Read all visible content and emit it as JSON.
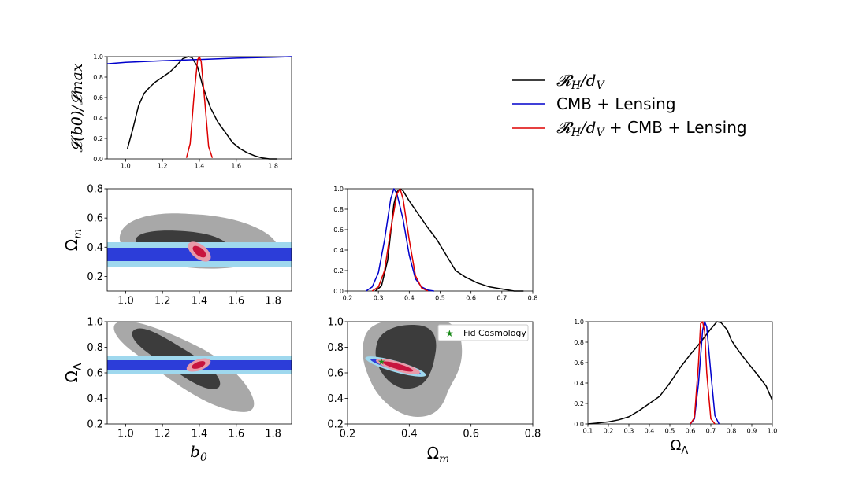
{
  "colors": {
    "black": "#000000",
    "blue": "#0000cc",
    "red": "#dd0000",
    "gray_outer": "#a8a8a8",
    "gray_inner": "#3c3c3c",
    "cyan": "#9fd8ee",
    "navy": "#2c3dd9",
    "pink": "#e89aa8",
    "crimson": "#c8143e",
    "star": "#1a8a1a"
  },
  "legend": {
    "entries": [
      {
        "label": "𝓡H/dV",
        "color": "#000000"
      },
      {
        "label": "CMB + Lensing",
        "color": "#0000cc"
      },
      {
        "label": "𝓡H/dV + CMB + Lensing",
        "color": "#dd0000"
      }
    ],
    "rh_main": "𝓡",
    "rh_sub": "H",
    "dv_main": "/d",
    "dv_sub": "V",
    "cmb": "CMB + Lensing",
    "combo_tail": " + CMB + Lensing"
  },
  "labels": {
    "b0": "b",
    "b0_sub": "0",
    "om": "Ω",
    "om_sub": "m",
    "ol": "Ω",
    "ol_sub": "Λ",
    "like_y": "𝓛(b0)/𝓛max",
    "fid": "Fid Cosmology"
  },
  "chart_data": [
    {
      "type": "line",
      "panel": "b0_marginal",
      "title": "",
      "xlabel": "",
      "ylabel": "𝓛(b0)/𝓛max",
      "xlim": [
        0.9,
        1.9
      ],
      "ylim": [
        0,
        1
      ],
      "xticks": [
        "1.0",
        "1.2",
        "1.4",
        "1.6",
        "1.8"
      ],
      "yticks": [
        "0.0",
        "0.2",
        "0.4",
        "0.6",
        "0.8",
        "1.0"
      ],
      "series": [
        {
          "name": "𝓡H/dV",
          "color": "#000000",
          "x": [
            1.01,
            1.04,
            1.07,
            1.1,
            1.13,
            1.16,
            1.2,
            1.24,
            1.28,
            1.31,
            1.34,
            1.36,
            1.39,
            1.42,
            1.46,
            1.5,
            1.54,
            1.58,
            1.62,
            1.66,
            1.7,
            1.74,
            1.78,
            1.82
          ],
          "y": [
            0.1,
            0.3,
            0.52,
            0.64,
            0.7,
            0.75,
            0.8,
            0.85,
            0.92,
            0.98,
            1.0,
            0.99,
            0.9,
            0.7,
            0.5,
            0.36,
            0.26,
            0.16,
            0.1,
            0.06,
            0.03,
            0.01,
            0.0,
            0.0
          ]
        },
        {
          "name": "CMB + Lensing",
          "color": "#0000cc",
          "x": [
            0.9,
            1.0,
            1.2,
            1.4,
            1.6,
            1.8,
            1.9
          ],
          "y": [
            0.93,
            0.945,
            0.96,
            0.972,
            0.985,
            0.995,
            1.0
          ]
        },
        {
          "name": "𝓡H/dV + CMB + Lensing",
          "color": "#dd0000",
          "x": [
            1.33,
            1.35,
            1.37,
            1.39,
            1.4,
            1.41,
            1.43,
            1.45,
            1.47
          ],
          "y": [
            0.01,
            0.15,
            0.6,
            0.97,
            1.0,
            0.95,
            0.55,
            0.12,
            0.01
          ]
        }
      ]
    },
    {
      "type": "line",
      "panel": "om_marginal",
      "xlim": [
        0.2,
        0.8
      ],
      "ylim": [
        0,
        1
      ],
      "xticks": [
        "0.2",
        "0.3",
        "0.4",
        "0.5",
        "0.6",
        "0.7",
        "0.8"
      ],
      "yticks": [
        "0.0",
        "0.2",
        "0.4",
        "0.6",
        "0.8",
        "1.0"
      ],
      "series": [
        {
          "name": "𝓡H/dV",
          "color": "#000000",
          "x": [
            0.29,
            0.31,
            0.33,
            0.35,
            0.36,
            0.37,
            0.38,
            0.4,
            0.43,
            0.46,
            0.49,
            0.52,
            0.55,
            0.58,
            0.62,
            0.66,
            0.7,
            0.74,
            0.77
          ],
          "y": [
            0.0,
            0.05,
            0.3,
            0.85,
            0.97,
            1.0,
            0.98,
            0.88,
            0.75,
            0.62,
            0.5,
            0.35,
            0.2,
            0.14,
            0.08,
            0.04,
            0.02,
            0.0,
            0.0
          ]
        },
        {
          "name": "CMB + Lensing",
          "color": "#0000cc",
          "x": [
            0.26,
            0.28,
            0.3,
            0.32,
            0.34,
            0.35,
            0.36,
            0.38,
            0.4,
            0.42,
            0.44,
            0.46,
            0.48
          ],
          "y": [
            0.0,
            0.04,
            0.18,
            0.5,
            0.9,
            1.0,
            0.95,
            0.7,
            0.35,
            0.12,
            0.04,
            0.01,
            0.0
          ]
        },
        {
          "name": "𝓡H/dV + CMB + Lensing",
          "color": "#dd0000",
          "x": [
            0.28,
            0.3,
            0.32,
            0.34,
            0.36,
            0.37,
            0.38,
            0.4,
            0.42,
            0.44,
            0.46
          ],
          "y": [
            0.0,
            0.04,
            0.2,
            0.6,
            0.95,
            1.0,
            0.9,
            0.5,
            0.15,
            0.03,
            0.0
          ]
        }
      ]
    },
    {
      "type": "line",
      "panel": "ol_marginal",
      "xlim": [
        0.1,
        1.0
      ],
      "ylim": [
        0,
        1
      ],
      "xticks": [
        "0.1",
        "0.2",
        "0.3",
        "0.4",
        "0.5",
        "0.6",
        "0.7",
        "0.8",
        "0.9",
        "1.0"
      ],
      "yticks": [
        "0.0",
        "0.2",
        "0.4",
        "0.6",
        "0.8",
        "1.0"
      ],
      "series": [
        {
          "name": "𝓡H/dV",
          "color": "#000000",
          "x": [
            0.1,
            0.15,
            0.2,
            0.25,
            0.3,
            0.35,
            0.4,
            0.45,
            0.5,
            0.55,
            0.6,
            0.65,
            0.7,
            0.73,
            0.75,
            0.78,
            0.8,
            0.83,
            0.86,
            0.9,
            0.94,
            0.97,
            1.0
          ],
          "y": [
            0.0,
            0.01,
            0.02,
            0.04,
            0.07,
            0.13,
            0.2,
            0.27,
            0.4,
            0.55,
            0.68,
            0.8,
            0.93,
            1.0,
            0.99,
            0.92,
            0.82,
            0.73,
            0.65,
            0.55,
            0.45,
            0.37,
            0.23
          ]
        },
        {
          "name": "CMB + Lensing",
          "color": "#0000cc",
          "x": [
            0.6,
            0.62,
            0.64,
            0.66,
            0.67,
            0.68,
            0.7,
            0.72,
            0.74
          ],
          "y": [
            0.0,
            0.05,
            0.4,
            0.92,
            1.0,
            0.95,
            0.5,
            0.08,
            0.0
          ]
        },
        {
          "name": "𝓡H/dV + CMB + Lensing",
          "color": "#dd0000",
          "x": [
            0.6,
            0.62,
            0.64,
            0.65,
            0.66,
            0.67,
            0.68,
            0.7,
            0.72
          ],
          "y": [
            0.0,
            0.06,
            0.6,
            0.98,
            1.0,
            0.9,
            0.5,
            0.05,
            0.0
          ]
        }
      ]
    },
    {
      "type": "contour",
      "panel": "b0_om",
      "xlim": [
        0.9,
        1.9
      ],
      "ylim": [
        0.1,
        0.8
      ],
      "xticks": [
        "1.0",
        "1.2",
        "1.4",
        "1.6",
        "1.8"
      ],
      "yticks": [
        "0.2",
        "0.4",
        "0.6",
        "0.8"
      ],
      "xlabel": "",
      "ylabel": "Ωm"
    },
    {
      "type": "contour",
      "panel": "b0_ol",
      "xlim": [
        0.9,
        1.9
      ],
      "ylim": [
        0.2,
        1.0
      ],
      "xticks": [
        "1.0",
        "1.2",
        "1.4",
        "1.6",
        "1.8"
      ],
      "yticks": [
        "0.2",
        "0.4",
        "0.6",
        "0.8",
        "1.0"
      ],
      "xlabel": "b0",
      "ylabel": "ΩΛ"
    },
    {
      "type": "contour",
      "panel": "om_ol",
      "xlim": [
        0.2,
        0.8
      ],
      "ylim": [
        0.2,
        1.0
      ],
      "xticks": [
        "0.2",
        "0.4",
        "0.6",
        "0.8"
      ],
      "yticks": [
        "0.2",
        "0.4",
        "0.6",
        "0.8",
        "1.0"
      ],
      "xlabel": "Ωm",
      "ylabel": "",
      "fiducial": {
        "x": 0.31,
        "y": 0.69,
        "label": "Fid Cosmology"
      }
    }
  ]
}
